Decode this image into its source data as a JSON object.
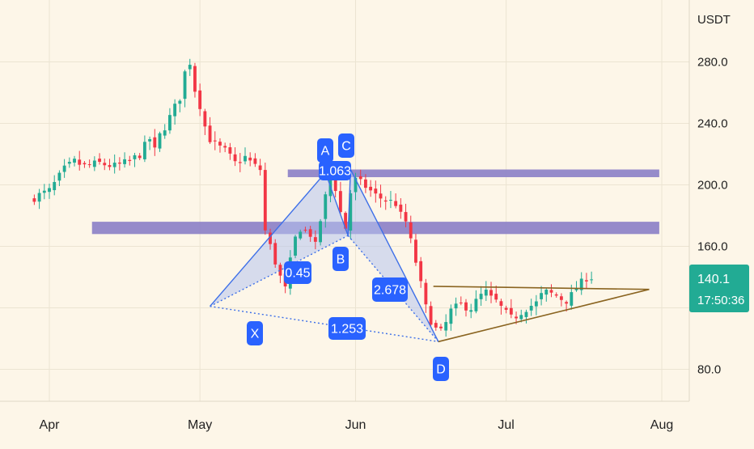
{
  "chart_data": {
    "type": "candlestick",
    "currency": "USDT",
    "y_ticks": [
      80,
      120,
      160,
      200,
      240,
      280
    ],
    "ylim": [
      68,
      297
    ],
    "x_ticks": [
      {
        "label": "Apr",
        "day": 0
      },
      {
        "label": "May",
        "day": 30
      },
      {
        "label": "Jun",
        "day": 61
      },
      {
        "label": "Jul",
        "day": 91
      },
      {
        "label": "Aug",
        "day": 122
      }
    ],
    "last_price": {
      "value": "140.1",
      "countdown": "17:50:36",
      "numeric": 140.1
    },
    "zones": [
      {
        "from": 205,
        "to": 210,
        "start_day": 47.5,
        "end_day": 121.5
      },
      {
        "from": 168,
        "to": 176,
        "start_day": 8.5,
        "end_day": 121.5
      }
    ],
    "harmonic_points": [
      {
        "label": "X",
        "day": 32,
        "price": 121
      },
      {
        "label": "A",
        "day": 55,
        "price": 208
      },
      {
        "label": "B",
        "day": 59.5,
        "price": 167
      },
      {
        "label": "C",
        "day": 60,
        "price": 210
      },
      {
        "label": "D",
        "day": 77.5,
        "price": 98
      }
    ],
    "ratios": [
      {
        "value": "0.45"
      },
      {
        "value": "1.063"
      },
      {
        "value": "2.678"
      },
      {
        "value": "1.253"
      }
    ],
    "triangle": {
      "upper": {
        "start_day": 76.5,
        "start_price": 134,
        "end_day": 119.5,
        "end_price": 132
      },
      "lower": {
        "start_day": 77.5,
        "start_price": 98,
        "end_day": 119.5,
        "end_price": 132
      }
    },
    "candle_colors": {
      "up": "#22ab94",
      "down": "#f23645"
    },
    "candles": []
  }
}
